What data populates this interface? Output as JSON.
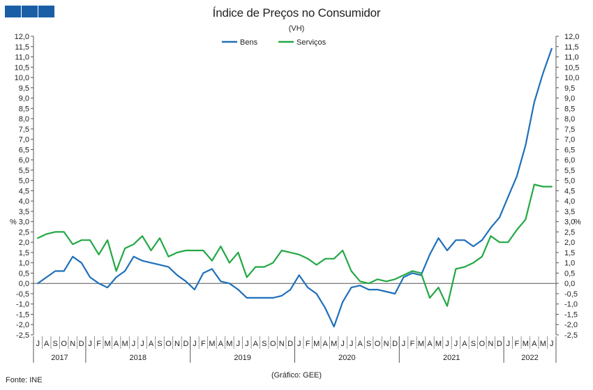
{
  "header": {
    "logo_colors": [
      "#1a5fa6",
      "#1a5fa6",
      "#1a5fa6"
    ]
  },
  "footer": {
    "source": "Fonte: INE",
    "credit": "(Gráfico: GEE)"
  },
  "chart_data": {
    "type": "line",
    "title": "Índice de Preços no Consumidor",
    "subtitle": "(VH)",
    "ylabel_left": "%",
    "ylabel_right": "%",
    "ylim": [
      -2.5,
      12.0
    ],
    "yticks": [
      "12,0",
      "11,5",
      "11,0",
      "10,5",
      "10,0",
      "9,5",
      "9,0",
      "8,5",
      "8,0",
      "7,5",
      "7,0",
      "6,5",
      "6,0",
      "5,5",
      "5,0",
      "4,5",
      "4,0",
      "3,5",
      "3,0",
      "2,5",
      "2,0",
      "1,5",
      "1,0",
      "0,5",
      "0,0",
      "-0,5",
      "-1,0",
      "-1,5",
      "-2,0",
      "-2,5"
    ],
    "categories": [
      "J",
      "A",
      "S",
      "O",
      "N",
      "D",
      "J",
      "F",
      "M",
      "A",
      "M",
      "J",
      "J",
      "A",
      "S",
      "O",
      "N",
      "D",
      "J",
      "F",
      "M",
      "A",
      "M",
      "J",
      "J",
      "A",
      "S",
      "O",
      "N",
      "D",
      "J",
      "F",
      "M",
      "A",
      "M",
      "J",
      "J",
      "A",
      "S",
      "O",
      "N",
      "D",
      "J",
      "F",
      "M",
      "A",
      "M",
      "J",
      "J",
      "A",
      "S",
      "O",
      "N",
      "D",
      "J",
      "F",
      "M",
      "A",
      "M",
      "J"
    ],
    "years": [
      {
        "label": "2017",
        "months": 6
      },
      {
        "label": "2018",
        "months": 12
      },
      {
        "label": "2019",
        "months": 12
      },
      {
        "label": "2020",
        "months": 12
      },
      {
        "label": "2021",
        "months": 12
      },
      {
        "label": "2022",
        "months": 6
      }
    ],
    "legend_position": "top-center",
    "grid": false,
    "series": [
      {
        "name": "Bens",
        "color": "#1f6fba",
        "values": [
          0.0,
          0.3,
          0.6,
          0.6,
          1.3,
          1.0,
          0.3,
          0.0,
          -0.2,
          0.3,
          0.6,
          1.3,
          1.1,
          1.0,
          0.9,
          0.8,
          0.4,
          0.1,
          -0.3,
          0.5,
          0.7,
          0.1,
          0.0,
          -0.3,
          -0.7,
          -0.7,
          -0.7,
          -0.7,
          -0.6,
          -0.3,
          0.4,
          -0.2,
          -0.5,
          -1.2,
          -2.1,
          -0.9,
          -0.2,
          -0.1,
          -0.3,
          -0.3,
          -0.4,
          -0.5,
          0.3,
          0.5,
          0.4,
          1.4,
          2.2,
          1.6,
          2.1,
          2.1,
          1.8,
          2.1,
          2.7,
          3.2,
          4.2,
          5.2,
          6.7,
          8.8,
          10.2,
          11.4
        ]
      },
      {
        "name": "Serviços",
        "color": "#22a844",
        "values": [
          2.2,
          2.4,
          2.5,
          2.5,
          1.9,
          2.1,
          2.1,
          1.4,
          2.1,
          0.6,
          1.7,
          1.9,
          2.3,
          1.6,
          2.2,
          1.3,
          1.5,
          1.6,
          1.6,
          1.6,
          1.1,
          1.8,
          1.0,
          1.5,
          0.3,
          0.8,
          0.8,
          1.0,
          1.6,
          1.5,
          1.4,
          1.2,
          0.9,
          1.2,
          1.2,
          1.6,
          0.6,
          0.1,
          0.0,
          0.2,
          0.1,
          0.2,
          0.4,
          0.6,
          0.5,
          -0.7,
          -0.2,
          -1.1,
          0.7,
          0.8,
          1.0,
          1.3,
          2.3,
          2.0,
          2.0,
          2.6,
          3.1,
          4.8,
          4.7,
          4.7
        ]
      }
    ]
  }
}
